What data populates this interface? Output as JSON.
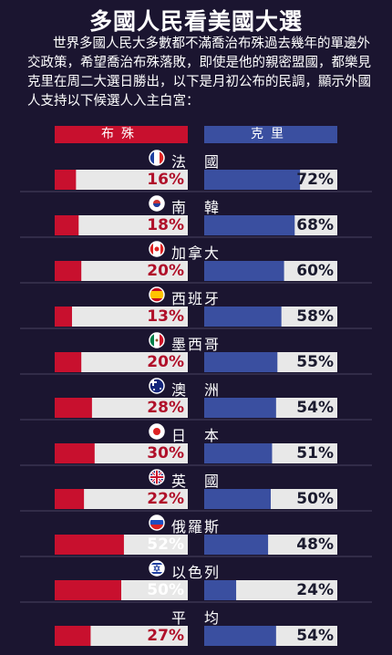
{
  "title": "多國人民看美國大選",
  "intro": "世界多國人民大多數都不滿喬治布殊過去幾年的單邊外交政策，希望喬治布殊落敗，即使是他的親密盟國，都樂見克里在周二大選日勝出，以下是月初公布的民調，顯示外國人支持以下候選人入主白宮：",
  "colors": {
    "bush": "#c8102e",
    "kerry": "#3a4fa0",
    "track": "#e8e8e8",
    "bg": "#1b1530"
  },
  "chart_data": {
    "type": "bar",
    "series": [
      {
        "name": "布殊",
        "values": [
          16,
          18,
          20,
          13,
          20,
          28,
          30,
          22,
          52,
          50,
          27
        ]
      },
      {
        "name": "克里",
        "values": [
          72,
          68,
          60,
          58,
          55,
          54,
          51,
          50,
          48,
          24,
          54
        ]
      }
    ],
    "categories": [
      "法　國",
      "南　韓",
      "加拿大",
      "西班牙",
      "墨西哥",
      "澳　洲",
      "日　本",
      "英　國",
      "俄羅斯",
      "以色列",
      "平　均"
    ],
    "value_labels": {
      "bush": [
        "16%",
        "18%",
        "20%",
        "13%",
        "20%",
        "28%",
        "30%",
        "22%",
        "52%",
        "50%",
        "27%"
      ],
      "kerry": [
        "72%",
        "68%",
        "60%",
        "58%",
        "55%",
        "54%",
        "51%",
        "50%",
        "48%",
        "24%",
        "54%"
      ]
    },
    "flag_icons": [
      "france-flag-icon",
      "south-korea-flag-icon",
      "canada-flag-icon",
      "spain-flag-icon",
      "mexico-flag-icon",
      "australia-flag-icon",
      "japan-flag-icon",
      "uk-flag-icon",
      "russia-flag-icon",
      "israel-flag-icon",
      ""
    ],
    "ylim": [
      0,
      100
    ]
  }
}
